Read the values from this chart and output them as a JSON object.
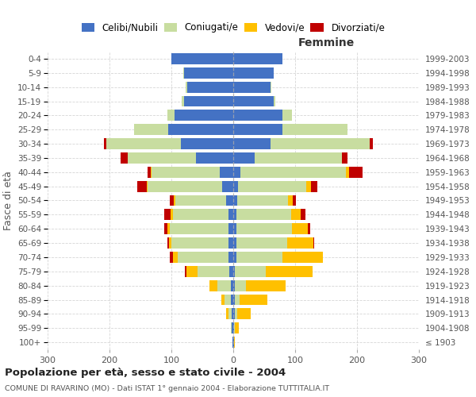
{
  "age_groups": [
    "100+",
    "95-99",
    "90-94",
    "85-89",
    "80-84",
    "75-79",
    "70-74",
    "65-69",
    "60-64",
    "55-59",
    "50-54",
    "45-49",
    "40-44",
    "35-39",
    "30-34",
    "25-29",
    "20-24",
    "15-19",
    "10-14",
    "5-9",
    "0-4"
  ],
  "birth_years": [
    "≤ 1903",
    "1904-1908",
    "1909-1913",
    "1914-1918",
    "1919-1923",
    "1924-1928",
    "1929-1933",
    "1934-1938",
    "1939-1943",
    "1944-1948",
    "1949-1953",
    "1954-1958",
    "1959-1963",
    "1964-1968",
    "1969-1973",
    "1974-1978",
    "1979-1983",
    "1984-1988",
    "1989-1993",
    "1994-1998",
    "1999-2003"
  ],
  "male_celibi": [
    1,
    2,
    3,
    4,
    4,
    6,
    8,
    8,
    8,
    8,
    12,
    18,
    22,
    60,
    85,
    105,
    95,
    80,
    75,
    80,
    100
  ],
  "male_coniugati": [
    0,
    2,
    5,
    10,
    22,
    52,
    82,
    92,
    95,
    90,
    82,
    120,
    110,
    110,
    120,
    55,
    12,
    3,
    2,
    1,
    0
  ],
  "male_vedovi": [
    0,
    0,
    3,
    5,
    12,
    18,
    8,
    4,
    3,
    3,
    2,
    2,
    1,
    0,
    0,
    0,
    0,
    0,
    0,
    0,
    0
  ],
  "male_divorziati": [
    0,
    0,
    0,
    0,
    0,
    2,
    4,
    2,
    5,
    10,
    6,
    15,
    5,
    12,
    4,
    0,
    0,
    0,
    0,
    0,
    0
  ],
  "female_celibi": [
    1,
    1,
    2,
    2,
    2,
    3,
    5,
    5,
    5,
    5,
    6,
    8,
    12,
    35,
    60,
    80,
    80,
    65,
    60,
    65,
    80
  ],
  "female_coniugati": [
    0,
    2,
    4,
    8,
    18,
    50,
    75,
    82,
    90,
    88,
    82,
    110,
    170,
    140,
    160,
    105,
    15,
    3,
    2,
    1,
    0
  ],
  "female_vedovi": [
    2,
    6,
    22,
    45,
    65,
    75,
    65,
    42,
    26,
    16,
    8,
    8,
    5,
    0,
    0,
    0,
    0,
    0,
    0,
    0,
    0
  ],
  "female_divorziati": [
    0,
    0,
    0,
    0,
    0,
    0,
    0,
    2,
    3,
    8,
    5,
    10,
    22,
    10,
    5,
    0,
    0,
    0,
    0,
    0,
    0
  ],
  "colors": {
    "celibi": "#4472c4",
    "coniugati": "#c8dda0",
    "vedovi": "#ffc000",
    "divorziati": "#c00000"
  },
  "title": "Popolazione per età, sesso e stato civile - 2004",
  "subtitle": "COMUNE DI RAVARINO (MO) - Dati ISTAT 1° gennaio 2004 - Elaborazione TUTTITALIA.IT",
  "xlabel_right": "Femmine",
  "ylabel_left": "Fasce di età",
  "xlim": 300,
  "legend_labels": [
    "Celibi/Nubili",
    "Coniugati/e",
    "Vedovi/e",
    "Divorziati/e"
  ],
  "bg_color": "#ffffff",
  "grid_color": "#cccccc"
}
